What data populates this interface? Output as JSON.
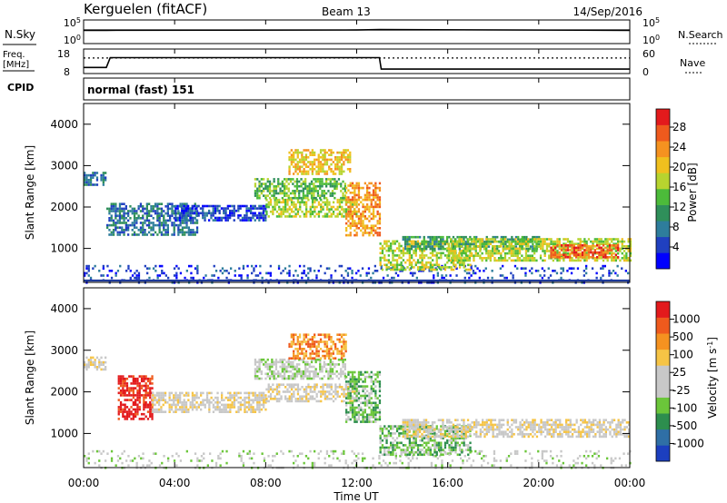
{
  "header": {
    "station": "Kerguelen (fitACF)",
    "beam": "Beam 13",
    "date": "14/Sep/2016"
  },
  "nsky_panel": {
    "left_label": "N.Sky",
    "right_label": "N.Search",
    "left_ticks": [
      "10^5",
      "10^0"
    ],
    "right_ticks": [
      "10^5",
      "10^0"
    ],
    "legend_style": "dotted"
  },
  "freq_panel": {
    "left_label_line1": "Freq.",
    "left_label_line2": "[MHz]",
    "right_label": "Nave",
    "left_ticks": [
      "18",
      "8"
    ],
    "right_ticks": [
      "60",
      "0"
    ],
    "cpid_label": "CPID",
    "cpid_value": "normal (fast) 151"
  },
  "chart_data": [
    {
      "type": "line",
      "title": "N.Sky / N.Search",
      "x": [
        "00:00",
        "01:00",
        "12:00",
        "13:00",
        "24:00"
      ],
      "series": [
        {
          "name": "N.Sky",
          "values": [
            4.9,
            4.9,
            5.0,
            5.1,
            4.9
          ]
        },
        {
          "name": "N.Search",
          "values": [
            null,
            null,
            null,
            null,
            null
          ]
        }
      ],
      "ylim": [
        0,
        5
      ]
    },
    {
      "type": "line",
      "title": "Freq. / Nave",
      "x": [
        "00:00",
        "01:00",
        "01:10",
        "13:00",
        "13:05",
        "24:00"
      ],
      "series": [
        {
          "name": "Freq.",
          "values": [
            10.5,
            10.5,
            14.5,
            14.5,
            9.8,
            9.8
          ]
        },
        {
          "name": "Nave",
          "values": [
            38,
            38,
            38,
            38,
            38,
            38
          ]
        }
      ],
      "ylim": [
        8,
        18
      ]
    },
    {
      "type": "heatmap",
      "title": "Power",
      "ylabel": "Slant Range [km]",
      "xlabel": "Time UT",
      "xlim": [
        0,
        24
      ],
      "ylim": [
        180,
        4500
      ],
      "yticks": [
        "1000",
        "2000",
        "3000",
        "4000"
      ],
      "xticks": [
        "00:00",
        "04:00",
        "08:00",
        "12:00",
        "16:00",
        "20:00",
        "00:00"
      ],
      "colorbar_label": "Power [dB]",
      "colorbar_ticks": [
        "28",
        "24",
        "20",
        "16",
        "12",
        "8",
        "4"
      ],
      "colorbar_colors": [
        "#0000ff",
        "#2040c0",
        "#2e7d9c",
        "#2f8f5a",
        "#4cbb3a",
        "#b7d42f",
        "#f0c01e",
        "#f59220",
        "#ef5a1d",
        "#e31a1c"
      ],
      "bands": [
        {
          "t0": 0.0,
          "t1": 1.0,
          "r0": 2550,
          "r1": 2850,
          "level": 2
        },
        {
          "t0": 0.0,
          "t1": 24.0,
          "r0": 180,
          "r1": 600,
          "level": 1
        },
        {
          "t0": 1.0,
          "t1": 5.0,
          "r0": 1350,
          "r1": 2100,
          "level": 2
        },
        {
          "t0": 4.0,
          "t1": 8.0,
          "r0": 1700,
          "r1": 2050,
          "level": 1
        },
        {
          "t0": 8.0,
          "t1": 12.0,
          "r0": 1750,
          "r1": 2200,
          "level": 5
        },
        {
          "t0": 7.5,
          "t1": 11.5,
          "r0": 2200,
          "r1": 2700,
          "level": 4
        },
        {
          "t0": 9.0,
          "t1": 11.7,
          "r0": 2800,
          "r1": 3400,
          "level": 6
        },
        {
          "t0": 11.5,
          "t1": 13.0,
          "r0": 1300,
          "r1": 2600,
          "level": 7
        },
        {
          "t0": 13.0,
          "t1": 17.0,
          "r0": 500,
          "r1": 1200,
          "level": 5
        },
        {
          "t0": 14.0,
          "t1": 20.0,
          "r0": 1000,
          "r1": 1300,
          "level": 3
        },
        {
          "t0": 16.0,
          "t1": 24.0,
          "r0": 700,
          "r1": 1250,
          "level": 5
        },
        {
          "t0": 20.5,
          "t1": 23.5,
          "r0": 800,
          "r1": 1100,
          "level": 8
        }
      ]
    },
    {
      "type": "heatmap",
      "title": "Velocity",
      "ylabel": "Slant Range [km]",
      "xlabel": "Time UT",
      "xlim": [
        0,
        24
      ],
      "ylim": [
        180,
        4500
      ],
      "yticks": [
        "1000",
        "2000",
        "3000",
        "4000"
      ],
      "xticks": [
        "00:00",
        "04:00",
        "08:00",
        "12:00",
        "16:00",
        "20:00",
        "00:00"
      ],
      "colorbar_label": "Velocity [m s^-1]",
      "colorbar_ticks": [
        "1000",
        "500",
        "100",
        "25",
        "-25",
        "-100",
        "-500",
        "-1000"
      ],
      "colorbar_colors": [
        "#1c3fbf",
        "#2f6fa6",
        "#2d8e4e",
        "#6bc63a",
        "#c8c8c8",
        "#c8c8c8",
        "#f6c445",
        "#f59220",
        "#ef5a1d",
        "#e31a1c"
      ],
      "bands": [
        {
          "t0": 0.0,
          "t1": 1.0,
          "r0": 2550,
          "r1": 2850,
          "level": 5
        },
        {
          "t0": 0.0,
          "t1": 24.0,
          "r0": 180,
          "r1": 600,
          "level": 4
        },
        {
          "t0": 1.5,
          "t1": 3.0,
          "r0": 1350,
          "r1": 2400,
          "level": 9
        },
        {
          "t0": 3.0,
          "t1": 8.0,
          "r0": 1500,
          "r1": 2000,
          "level": 5
        },
        {
          "t0": 8.0,
          "t1": 12.0,
          "r0": 1800,
          "r1": 2200,
          "level": 5
        },
        {
          "t0": 7.5,
          "t1": 11.5,
          "r0": 2300,
          "r1": 2800,
          "level": 4
        },
        {
          "t0": 9.0,
          "t1": 11.5,
          "r0": 2800,
          "r1": 3400,
          "level": 7
        },
        {
          "t0": 11.5,
          "t1": 13.0,
          "r0": 1300,
          "r1": 2500,
          "level": 3
        },
        {
          "t0": 13.0,
          "t1": 17.0,
          "r0": 500,
          "r1": 1200,
          "level": 3
        },
        {
          "t0": 14.0,
          "t1": 24.0,
          "r0": 900,
          "r1": 1350,
          "level": 5
        }
      ]
    }
  ]
}
